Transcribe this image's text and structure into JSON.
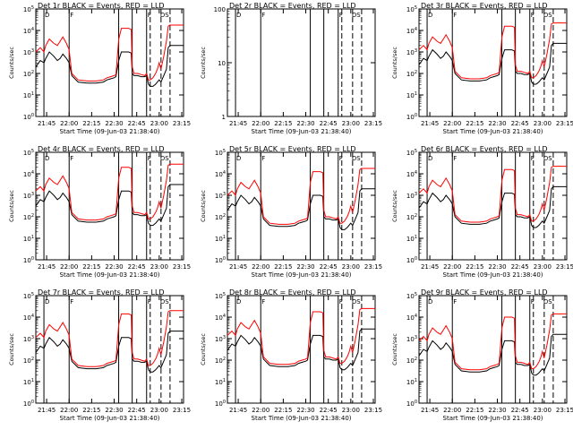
{
  "chart_data": {
    "type": "line",
    "xlabel": "Start Time (09-Jun-03 21:38:40)",
    "ylabel": "Counts/sec",
    "x_range": [
      21.63,
      23.27
    ],
    "x_ticks": [
      "21:45",
      "22:00",
      "22:15",
      "22:30",
      "22:45",
      "23:00",
      "23:15"
    ],
    "x_tick_values": [
      21.75,
      22.0,
      22.25,
      22.5,
      22.75,
      23.0,
      23.25
    ],
    "legend": "BLACK = Events, RED = LLD",
    "markers": [
      {
        "time": 21.72,
        "label": "D"
      },
      {
        "time": 22.0,
        "label": "F"
      },
      {
        "time": 22.86,
        "label": "F"
      },
      {
        "time": 23.0,
        "label": "DS"
      }
    ],
    "vlines_solid": [
      21.72,
      22.0,
      22.55,
      22.7,
      22.86
    ],
    "vlines_dashed": [
      22.9,
      23.02,
      23.12
    ],
    "panels": [
      {
        "title": "Det 1r BLACK = Events, RED = LLD",
        "yscale": "log",
        "yticks": [
          "10^0",
          "10^1",
          "10^2",
          "10^3",
          "10^4",
          "10^5"
        ],
        "series": [
          {
            "name": "Events",
            "color": "black"
          },
          {
            "name": "LLD",
            "color": "red"
          }
        ]
      },
      {
        "title": "Det 2r BLACK = Events, RED = LLD",
        "yscale": "log",
        "yticks": [
          "1",
          "10",
          "100"
        ],
        "series": []
      },
      {
        "title": "Det 3r BLACK = Events, RED = LLD",
        "yscale": "log",
        "yticks": [
          "10^0",
          "10^1",
          "10^2",
          "10^3",
          "10^4",
          "10^5"
        ],
        "series": [
          {
            "name": "Events",
            "color": "black"
          },
          {
            "name": "LLD",
            "color": "red"
          }
        ]
      },
      {
        "title": "Det 4r BLACK = Events, RED = LLD",
        "yscale": "log",
        "yticks": [
          "10^0",
          "10^1",
          "10^2",
          "10^3",
          "10^4",
          "10^5"
        ],
        "series": [
          {
            "name": "Events",
            "color": "black"
          },
          {
            "name": "LLD",
            "color": "red"
          }
        ]
      },
      {
        "title": "Det 5r BLACK = Events, RED = LLD",
        "yscale": "log",
        "yticks": [
          "10^0",
          "10^1",
          "10^2",
          "10^3",
          "10^4",
          "10^5"
        ],
        "series": [
          {
            "name": "Events",
            "color": "black"
          },
          {
            "name": "LLD",
            "color": "red"
          }
        ]
      },
      {
        "title": "Det 6r BLACK = Events, RED = LLD",
        "yscale": "log",
        "yticks": [
          "10^0",
          "10^1",
          "10^2",
          "10^3",
          "10^4",
          "10^5"
        ],
        "series": [
          {
            "name": "Events",
            "color": "black"
          },
          {
            "name": "LLD",
            "color": "red"
          }
        ]
      },
      {
        "title": "Det 7r BLACK = Events, RED = LLD",
        "yscale": "log",
        "yticks": [
          "10^0",
          "10^1",
          "10^2",
          "10^3",
          "10^4",
          "10^5"
        ],
        "series": [
          {
            "name": "Events",
            "color": "black"
          },
          {
            "name": "LLD",
            "color": "red"
          }
        ]
      },
      {
        "title": "Det 8r BLACK = Events, RED = LLD",
        "yscale": "log",
        "yticks": [
          "10^0",
          "10^1",
          "10^2",
          "10^3",
          "10^4",
          "10^5"
        ],
        "series": [
          {
            "name": "Events",
            "color": "black"
          },
          {
            "name": "LLD",
            "color": "red"
          }
        ]
      },
      {
        "title": "Det 9r BLACK = Events, RED = LLD",
        "yscale": "log",
        "yticks": [
          "10^0",
          "10^1",
          "10^2",
          "10^3",
          "10^4",
          "10^5"
        ],
        "series": [
          {
            "name": "Events",
            "color": "black"
          },
          {
            "name": "LLD",
            "color": "red"
          }
        ]
      }
    ],
    "profile": {
      "x": [
        21.63,
        21.68,
        21.72,
        21.74,
        21.78,
        21.83,
        21.87,
        21.9,
        21.93,
        21.97,
        22.0,
        22.03,
        22.1,
        22.2,
        22.3,
        22.38,
        22.42,
        22.46,
        22.5,
        22.52,
        22.55,
        22.58,
        22.62,
        22.66,
        22.69,
        22.7,
        22.72,
        22.76,
        22.8,
        22.84,
        22.86,
        22.88,
        22.9,
        22.93,
        22.96,
        22.98,
        23.0,
        23.02,
        23.05,
        23.08,
        23.1,
        23.12,
        23.15,
        23.2,
        23.27
      ],
      "events_log10": [
        2.3,
        2.6,
        2.5,
        2.7,
        3.0,
        2.8,
        2.6,
        2.7,
        2.9,
        2.7,
        2.5,
        1.9,
        1.6,
        1.55,
        1.55,
        1.6,
        1.7,
        1.75,
        1.8,
        1.85,
        2.6,
        3.0,
        3.0,
        3.0,
        2.95,
        2.0,
        1.9,
        1.9,
        1.85,
        1.85,
        1.9,
        1.5,
        1.4,
        1.4,
        1.5,
        1.6,
        1.7,
        1.6,
        1.9,
        2.2,
        3.2,
        3.3,
        3.3,
        3.3,
        3.3
      ],
      "lld_log10": [
        3.0,
        3.2,
        3.0,
        3.3,
        3.6,
        3.4,
        3.3,
        3.5,
        3.7,
        3.4,
        3.1,
        2.0,
        1.7,
        1.65,
        1.65,
        1.7,
        1.8,
        1.85,
        1.9,
        1.95,
        3.6,
        4.1,
        4.1,
        4.1,
        4.05,
        2.3,
        2.0,
        2.0,
        1.95,
        1.9,
        2.0,
        1.7,
        1.7,
        1.8,
        2.0,
        2.2,
        2.5,
        2.2,
        2.8,
        3.5,
        4.2,
        4.25,
        4.25,
        4.25,
        4.25
      ]
    }
  }
}
